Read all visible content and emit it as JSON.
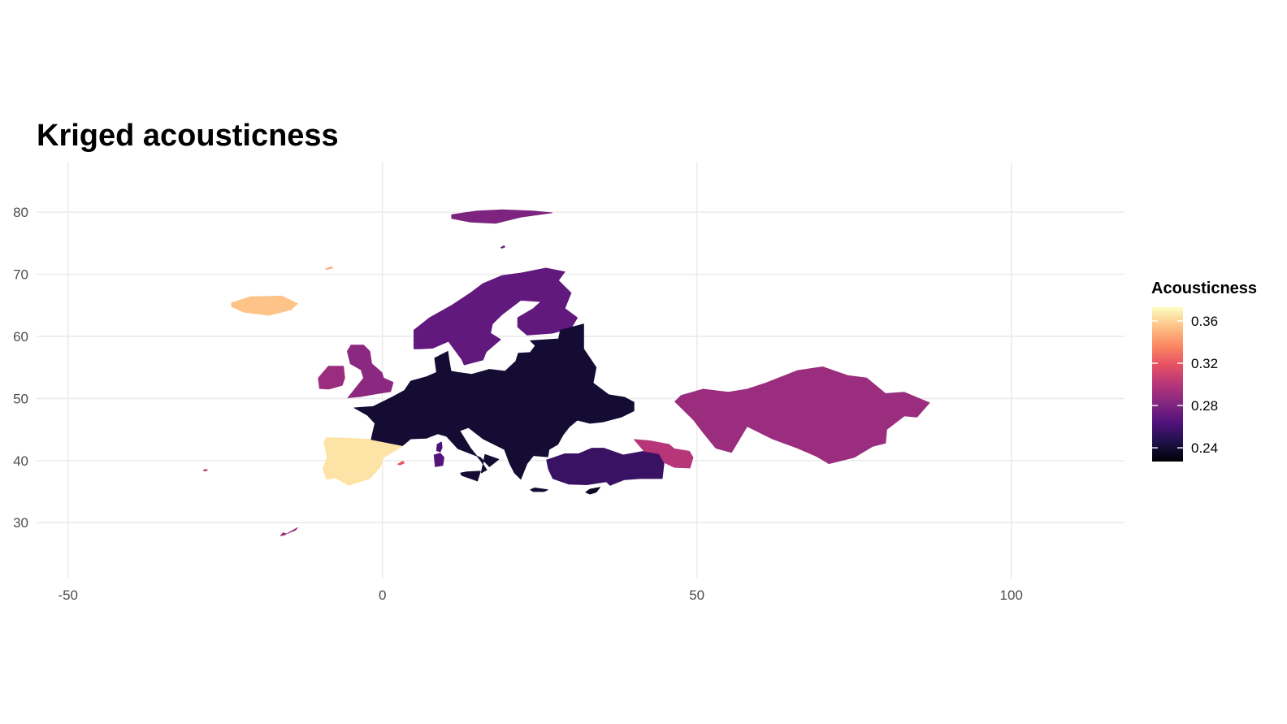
{
  "chart_data": {
    "type": "heatmap",
    "title": "Kriged acousticness",
    "xlabel": "",
    "ylabel": "",
    "xlim": [
      -55,
      118
    ],
    "ylim": [
      21,
      88
    ],
    "x_ticks": [
      -50,
      0,
      50,
      100
    ],
    "x_tick_labels": [
      "-50",
      "0",
      "50",
      "100"
    ],
    "y_ticks": [
      30,
      40,
      50,
      60,
      70,
      80
    ],
    "y_tick_labels": [
      "30",
      "40",
      "50",
      "60",
      "70",
      "80"
    ],
    "grid": true,
    "legend": {
      "title": "Acousticness",
      "placement": "right",
      "scale": "magma",
      "range": [
        0.227,
        0.373
      ],
      "ticks": [
        0.24,
        0.28,
        0.32,
        0.36
      ],
      "tick_labels": [
        "0.24",
        "0.28",
        "0.32",
        "0.36"
      ],
      "stops": [
        "#000004",
        "#1d1147",
        "#51127c",
        "#822681",
        "#b63679",
        "#e65164",
        "#fb8861",
        "#fec287",
        "#fcfdbf"
      ]
    },
    "regions": [
      {
        "name": "Svalbard",
        "points": [
          [
            11,
            79.6
          ],
          [
            15,
            80.2
          ],
          [
            19,
            80.4
          ],
          [
            24,
            80.2
          ],
          [
            27,
            79.9
          ],
          [
            22,
            79.2
          ],
          [
            18,
            78.2
          ],
          [
            14,
            78.4
          ],
          [
            11,
            79
          ]
        ],
        "value": 0.28
      },
      {
        "name": "Iceland",
        "points": [
          [
            -24,
            65.4
          ],
          [
            -21,
            66.4
          ],
          [
            -16,
            66.5
          ],
          [
            -13.5,
            65.3
          ],
          [
            -14.5,
            64.3
          ],
          [
            -18,
            63.4
          ],
          [
            -22,
            63.9
          ],
          [
            -24,
            64.8
          ]
        ],
        "value": 0.355
      },
      {
        "name": "Ireland",
        "points": [
          [
            -10,
            51.6
          ],
          [
            -10.2,
            53.3
          ],
          [
            -8.6,
            55.2
          ],
          [
            -6.2,
            55.2
          ],
          [
            -6,
            53.3
          ],
          [
            -6.4,
            52.1
          ],
          [
            -8.5,
            51.5
          ]
        ],
        "value": 0.29
      },
      {
        "name": "Great Britain",
        "points": [
          [
            -5.5,
            50.1
          ],
          [
            -4.4,
            51.5
          ],
          [
            -3,
            53.3
          ],
          [
            -3.4,
            54.6
          ],
          [
            -5.1,
            55.6
          ],
          [
            -5.6,
            57.6
          ],
          [
            -5,
            58.6
          ],
          [
            -3,
            58.6
          ],
          [
            -2,
            57.6
          ],
          [
            -1.7,
            55.6
          ],
          [
            -0.1,
            54.2
          ],
          [
            0.2,
            53.3
          ],
          [
            1.7,
            52.6
          ],
          [
            1.3,
            51.1
          ],
          [
            -1.2,
            50.7
          ],
          [
            -3.5,
            50.3
          ]
        ],
        "value": 0.285
      },
      {
        "name": "Iberia",
        "points": [
          [
            -9.3,
            43
          ],
          [
            -8.9,
            43.7
          ],
          [
            -5.5,
            43.6
          ],
          [
            -1.8,
            43.4
          ],
          [
            3.2,
            42.3
          ],
          [
            0.2,
            40.5
          ],
          [
            -0.3,
            39
          ],
          [
            -2,
            37.1
          ],
          [
            -5.4,
            36
          ],
          [
            -7.4,
            37.2
          ],
          [
            -8.9,
            37
          ],
          [
            -9.5,
            38.7
          ],
          [
            -8.8,
            40.5
          ]
        ],
        "value": 0.365
      },
      {
        "name": "Scandinavia",
        "points": [
          [
            5,
            58
          ],
          [
            5,
            61
          ],
          [
            7.5,
            63
          ],
          [
            11,
            65
          ],
          [
            14,
            67
          ],
          [
            16,
            68.5
          ],
          [
            19,
            69.8
          ],
          [
            22,
            70.2
          ],
          [
            26,
            71
          ],
          [
            29,
            70.4
          ],
          [
            28,
            69
          ],
          [
            30,
            67
          ],
          [
            29,
            64.5
          ],
          [
            31,
            63
          ],
          [
            30,
            61.3
          ],
          [
            27,
            60.5
          ],
          [
            23,
            60.2
          ],
          [
            21.5,
            61.5
          ],
          [
            21.5,
            63
          ],
          [
            24,
            64.5
          ],
          [
            25.2,
            65.6
          ],
          [
            22,
            65.8
          ],
          [
            19,
            63.5
          ],
          [
            17.5,
            62
          ],
          [
            17.2,
            60.5
          ],
          [
            18.8,
            59.5
          ],
          [
            16.5,
            57.5
          ],
          [
            16,
            56.2
          ],
          [
            13,
            55.4
          ],
          [
            12.6,
            56.3
          ],
          [
            11,
            58.5
          ],
          [
            10.5,
            59.2
          ],
          [
            8,
            58.1
          ],
          [
            6,
            58
          ]
        ],
        "value": 0.27
      },
      {
        "name": "Continental Europe",
        "points": [
          [
            -1.8,
            43.4
          ],
          [
            -1.2,
            46
          ],
          [
            -2.4,
            47.3
          ],
          [
            -4.5,
            48.5
          ],
          [
            -1.5,
            48.7
          ],
          [
            1.5,
            50.2
          ],
          [
            3.5,
            51.3
          ],
          [
            4.5,
            52.8
          ],
          [
            7,
            53.5
          ],
          [
            8.6,
            54.2
          ],
          [
            8.3,
            56.5
          ],
          [
            10.4,
            57.6
          ],
          [
            10.6,
            56.2
          ],
          [
            10.9,
            54.4
          ],
          [
            12,
            54.2
          ],
          [
            14.2,
            53.9
          ],
          [
            17,
            54.7
          ],
          [
            19.5,
            54.4
          ],
          [
            21.2,
            56
          ],
          [
            21.6,
            57.3
          ],
          [
            23.5,
            57.4
          ],
          [
            24.3,
            58.5
          ],
          [
            23.5,
            59.3
          ],
          [
            28,
            59.6
          ],
          [
            28.3,
            61
          ],
          [
            32,
            62
          ],
          [
            32,
            58
          ],
          [
            34,
            55
          ],
          [
            33.5,
            52.5
          ],
          [
            36,
            50.6
          ],
          [
            38.5,
            50.2
          ],
          [
            40,
            49.4
          ],
          [
            40,
            48
          ],
          [
            38,
            47
          ],
          [
            35,
            46.2
          ],
          [
            33,
            46
          ],
          [
            31,
            46.5
          ],
          [
            29.7,
            45.4
          ],
          [
            28.7,
            44.1
          ],
          [
            27.9,
            42.6
          ],
          [
            26.5,
            41.8
          ],
          [
            26.3,
            40.6
          ],
          [
            24,
            40.8
          ],
          [
            23,
            39.5
          ],
          [
            22,
            37
          ],
          [
            21,
            38
          ],
          [
            20.2,
            39.6
          ],
          [
            19.4,
            41.8
          ],
          [
            16,
            43.5
          ],
          [
            13.7,
            45.3
          ],
          [
            12.3,
            44.8
          ],
          [
            14,
            42
          ],
          [
            15.6,
            40
          ],
          [
            16.6,
            38.5
          ],
          [
            15.7,
            38
          ],
          [
            16.3,
            41
          ],
          [
            18.5,
            40.2
          ],
          [
            17,
            39
          ],
          [
            15.6,
            40.5
          ],
          [
            12,
            41.9
          ],
          [
            10.2,
            43.9
          ],
          [
            8.8,
            44.3
          ],
          [
            7,
            43.6
          ],
          [
            4.5,
            43.5
          ],
          [
            3.2,
            42.4
          ]
        ],
        "value": 0.24
      },
      {
        "name": "Turkey",
        "points": [
          [
            26.1,
            40.1
          ],
          [
            26.4,
            38.6
          ],
          [
            27.1,
            37.1
          ],
          [
            29.6,
            36.2
          ],
          [
            32.5,
            36.1
          ],
          [
            35.6,
            36.6
          ],
          [
            36.2,
            36
          ],
          [
            38.4,
            36.9
          ],
          [
            41,
            37.1
          ],
          [
            44.5,
            37.1
          ],
          [
            44.8,
            39.7
          ],
          [
            44,
            41.1
          ],
          [
            41.6,
            41.5
          ],
          [
            38.3,
            40.9
          ],
          [
            35.2,
            42
          ],
          [
            33.3,
            42
          ],
          [
            31.2,
            41.1
          ],
          [
            29,
            41.1
          ],
          [
            27,
            40.4
          ]
        ],
        "value": 0.255
      },
      {
        "name": "Caucasus",
        "points": [
          [
            40,
            43.4
          ],
          [
            42.5,
            43.2
          ],
          [
            45.6,
            42.6
          ],
          [
            46.4,
            41.9
          ],
          [
            48.8,
            41.5
          ],
          [
            49.4,
            40.5
          ],
          [
            48.9,
            38.8
          ],
          [
            46.4,
            38.9
          ],
          [
            44.8,
            39.7
          ],
          [
            44,
            41.1
          ],
          [
            41.6,
            41.5
          ]
        ],
        "value": 0.3
      },
      {
        "name": "Central Asia",
        "points": [
          [
            46.5,
            49.5
          ],
          [
            47.5,
            50.5
          ],
          [
            51,
            51.5
          ],
          [
            55,
            51
          ],
          [
            58,
            51.5
          ],
          [
            61,
            52.5
          ],
          [
            66,
            54.5
          ],
          [
            70,
            55.1
          ],
          [
            74,
            53.7
          ],
          [
            77,
            53.3
          ],
          [
            80,
            50.8
          ],
          [
            83,
            51
          ],
          [
            87,
            49.3
          ],
          [
            85,
            47
          ],
          [
            83,
            47.2
          ],
          [
            80.2,
            45
          ],
          [
            80,
            42.8
          ],
          [
            78,
            42.3
          ],
          [
            75,
            40.5
          ],
          [
            71,
            39.5
          ],
          [
            69,
            40.7
          ],
          [
            66,
            42
          ],
          [
            62,
            43.5
          ],
          [
            58,
            45.5
          ],
          [
            55.5,
            41.3
          ],
          [
            53,
            42
          ],
          [
            51,
            44.5
          ],
          [
            49.5,
            46.5
          ]
        ],
        "value": 0.29
      },
      {
        "name": "Sicily",
        "points": [
          [
            12.4,
            38
          ],
          [
            13.4,
            38.2
          ],
          [
            15.6,
            38.3
          ],
          [
            15.1,
            36.7
          ],
          [
            14.3,
            37
          ],
          [
            12.6,
            37.6
          ]
        ],
        "value": 0.24
      },
      {
        "name": "Sardinia",
        "points": [
          [
            8.4,
            39
          ],
          [
            8.2,
            40.9
          ],
          [
            9.2,
            41.2
          ],
          [
            9.8,
            40.5
          ],
          [
            9.6,
            39.2
          ]
        ],
        "value": 0.265
      },
      {
        "name": "Corsica",
        "points": [
          [
            8.6,
            41.6
          ],
          [
            8.7,
            42.6
          ],
          [
            9.4,
            43
          ],
          [
            9.5,
            42.1
          ],
          [
            9.2,
            41.4
          ]
        ],
        "value": 0.262
      },
      {
        "name": "Crete",
        "points": [
          [
            23.5,
            35.3
          ],
          [
            24.2,
            35.6
          ],
          [
            26.3,
            35.3
          ],
          [
            25.7,
            35
          ],
          [
            24,
            35
          ]
        ],
        "value": 0.24
      },
      {
        "name": "Cyprus",
        "points": [
          [
            32.3,
            34.9
          ],
          [
            33,
            35.4
          ],
          [
            34.6,
            35.7
          ],
          [
            34,
            34.9
          ],
          [
            33,
            34.6
          ]
        ],
        "value": 0.235
      },
      {
        "name": "Balearic",
        "points": [
          [
            2.4,
            39.4
          ],
          [
            3.2,
            39.9
          ],
          [
            3.5,
            39.6
          ],
          [
            2.8,
            39.3
          ]
        ],
        "value": 0.32
      },
      {
        "name": "Jan Mayen",
        "points": [
          [
            -9.1,
            70.8
          ],
          [
            -8.1,
            71.2
          ],
          [
            -7.9,
            71
          ],
          [
            -8.8,
            70.8
          ]
        ],
        "value": 0.345
      },
      {
        "name": "Bear Island",
        "points": [
          [
            18.8,
            74.3
          ],
          [
            19.3,
            74.6
          ],
          [
            19.5,
            74.4
          ],
          [
            19,
            74.2
          ]
        ],
        "value": 0.275
      },
      {
        "name": "Azores",
        "points": [
          [
            -28.5,
            38.4
          ],
          [
            -28.1,
            38.6
          ],
          [
            -27.8,
            38.5
          ],
          [
            -28.2,
            38.3
          ]
        ],
        "value": 0.3
      },
      {
        "name": "Canary",
        "points": [
          [
            -16.2,
            27.9
          ],
          [
            -15.8,
            28.4
          ],
          [
            -15.3,
            28.2
          ],
          [
            -13.8,
            28.8
          ],
          [
            -13.5,
            29.2
          ],
          [
            -15.6,
            28
          ]
        ],
        "value": 0.29
      }
    ]
  }
}
